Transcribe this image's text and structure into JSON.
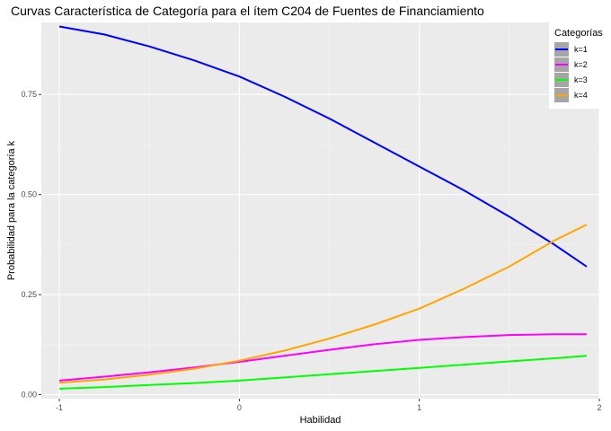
{
  "chart_data": {
    "type": "line",
    "title": "Curvas Característica de Categoría para el ítem C204 de Fuentes de Financiamiento",
    "xlabel": "Habilidad",
    "ylabel": "Probabilidad para la categoría k",
    "xlim": [
      -1.1,
      2.0
    ],
    "ylim": [
      -0.01,
      0.93
    ],
    "x_ticks": [
      -1,
      0,
      1,
      2
    ],
    "x_tick_labels": [
      "-1",
      "0",
      "1",
      "2"
    ],
    "y_ticks": [
      0.0,
      0.25,
      0.5,
      0.75
    ],
    "y_tick_labels": [
      "0.00",
      "0.25",
      "0.50",
      "0.75"
    ],
    "grid": true,
    "legend": {
      "title": "Categorías",
      "position": "top-right"
    },
    "x": [
      -1.0,
      -0.75,
      -0.5,
      -0.25,
      0.0,
      0.25,
      0.5,
      0.75,
      1.0,
      1.25,
      1.5,
      1.75,
      1.93
    ],
    "series": [
      {
        "name": "k=1",
        "color": "#0000ff",
        "values": [
          0.92,
          0.9,
          0.87,
          0.835,
          0.795,
          0.745,
          0.69,
          0.63,
          0.57,
          0.51,
          0.445,
          0.375,
          0.32
        ]
      },
      {
        "name": "k=2",
        "color": "#ff00ff",
        "values": [
          0.035,
          0.045,
          0.056,
          0.068,
          0.082,
          0.097,
          0.112,
          0.126,
          0.137,
          0.144,
          0.149,
          0.151,
          0.151
        ]
      },
      {
        "name": "k=3",
        "color": "#00ff00",
        "values": [
          0.015,
          0.019,
          0.024,
          0.029,
          0.035,
          0.043,
          0.051,
          0.059,
          0.067,
          0.075,
          0.083,
          0.091,
          0.097
        ]
      },
      {
        "name": "k=4",
        "color": "#ffa500",
        "values": [
          0.03,
          0.038,
          0.05,
          0.065,
          0.085,
          0.11,
          0.14,
          0.175,
          0.215,
          0.265,
          0.32,
          0.385,
          0.425
        ]
      }
    ]
  }
}
